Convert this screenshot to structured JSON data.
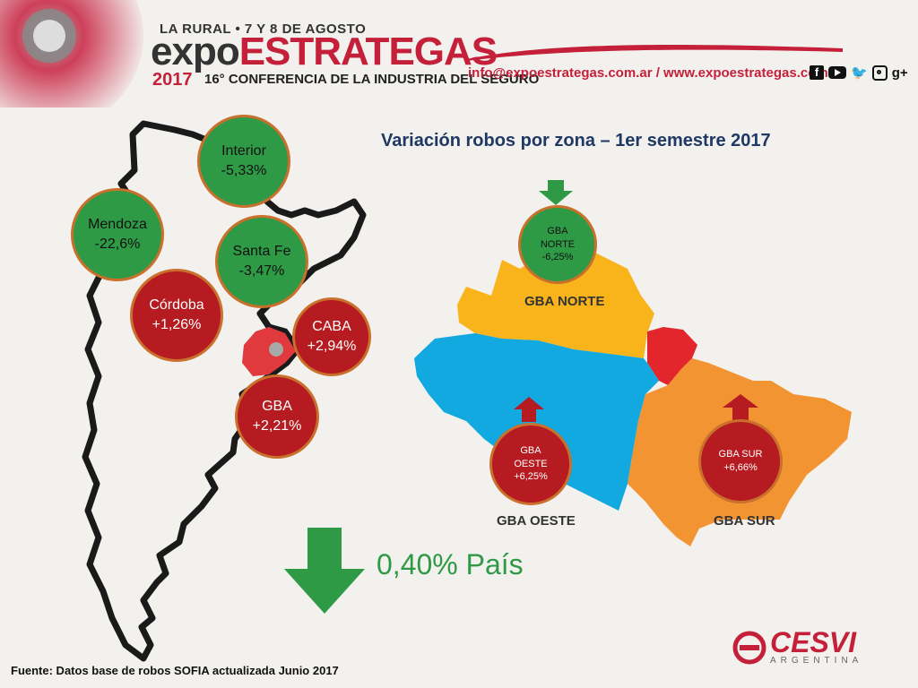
{
  "header": {
    "event_line": "LA RURAL • 7 Y 8 DE AGOSTO",
    "brand_expo": "expo",
    "brand_estrategas": "ESTRATEGAS",
    "year": "2017",
    "subtitle": "16° CONFERENCIA DE LA INDUSTRIA DEL SEGURO",
    "contact": "info@expoestrategas.com.ar / www.expoestrategas.com.ar",
    "social_gplus": "g+"
  },
  "title": "Variación robos por zona – 1er semestre 2017",
  "argentina_zones": [
    {
      "name": "Interior",
      "value": "-5,33%",
      "color": "green"
    },
    {
      "name": "Mendoza",
      "value": "-22,6%",
      "color": "green"
    },
    {
      "name": "Santa Fe",
      "value": "-3,47%",
      "color": "green"
    },
    {
      "name": "Córdoba",
      "value": "+1,26%",
      "color": "red"
    },
    {
      "name": "CABA",
      "value": "+2,94%",
      "color": "red"
    },
    {
      "name": "GBA",
      "value": "+2,21%",
      "color": "red"
    }
  ],
  "gba_zones": [
    {
      "line1": "GBA",
      "line2": "NORTE",
      "value": "-6,25%",
      "color": "green",
      "label": "GBA NORTE"
    },
    {
      "line1": "GBA",
      "line2": "OESTE",
      "value": "+6,25%",
      "color": "red",
      "label": "GBA OESTE"
    },
    {
      "line1": "GBA SUR",
      "line2": "",
      "value": "+6,66%",
      "color": "red",
      "label": "GBA SUR"
    }
  ],
  "country_total": "0,40% País",
  "footer_source": "Fuente: Datos base de robos SOFIA actualizada Junio 2017",
  "logo": {
    "name": "CESVI",
    "sub": "ARGENTINA"
  },
  "colors": {
    "green": "#2e9a45",
    "red": "#b51b21",
    "norte": "#f9b41b",
    "oeste": "#12a8e0",
    "sur": "#f39433",
    "caba": "#e3262c",
    "brand_red": "#c5203a"
  }
}
